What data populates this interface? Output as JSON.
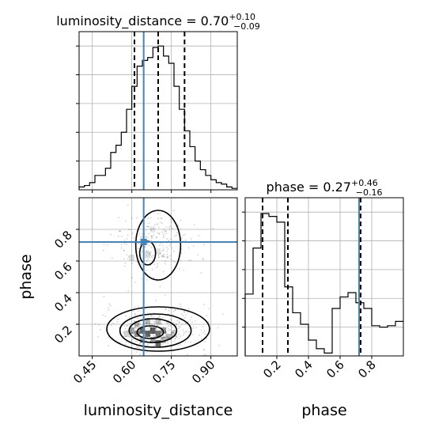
{
  "chart_data": [
    {
      "type": "histogram",
      "panel": "luminosity_distance-marginal",
      "title_main": "luminosity_distance = 0.70",
      "title_sup": "+0.10",
      "title_sub": "−0.09",
      "xlim": [
        0.4,
        1.0
      ],
      "ylim": [
        0,
        1.1
      ],
      "ytick_values": [
        0.2,
        0.4,
        0.6,
        0.8,
        1.0
      ],
      "xtick_values": [
        0.45,
        0.6,
        0.75,
        0.9
      ],
      "bin_edges": [
        0.4,
        0.42,
        0.44,
        0.46,
        0.48,
        0.5,
        0.52,
        0.54,
        0.56,
        0.58,
        0.6,
        0.62,
        0.64,
        0.66,
        0.68,
        0.7,
        0.72,
        0.74,
        0.76,
        0.78,
        0.8,
        0.82,
        0.84,
        0.86,
        0.88,
        0.9,
        0.92,
        0.94,
        0.96,
        0.98,
        1.0
      ],
      "density": [
        0.02,
        0.03,
        0.05,
        0.1,
        0.1,
        0.15,
        0.26,
        0.31,
        0.4,
        0.56,
        0.72,
        0.86,
        0.9,
        0.92,
        0.99,
        1.0,
        0.93,
        0.88,
        0.72,
        0.56,
        0.41,
        0.3,
        0.2,
        0.14,
        0.1,
        0.07,
        0.05,
        0.04,
        0.02,
        0.01
      ],
      "quantile_lines": [
        0.61,
        0.7,
        0.8
      ],
      "truth": 0.645,
      "grid": true
    },
    {
      "type": "scatter",
      "panel": "luminosity_distance-vs-phase",
      "xlabel": "luminosity_distance",
      "ylabel": "phase",
      "xlim": [
        0.4,
        1.0
      ],
      "ylim": [
        0.0,
        1.0
      ],
      "xtick_labels": [
        "0.45",
        "0.60",
        "0.75",
        "0.90"
      ],
      "xtick_values": [
        0.45,
        0.6,
        0.75,
        0.9
      ],
      "ytick_labels": [
        "0.2",
        "0.4",
        "0.6",
        "0.8"
      ],
      "ytick_values": [
        0.2,
        0.4,
        0.6,
        0.8
      ],
      "truth": [
        0.645,
        0.72
      ],
      "contour_levels": [
        {
          "center": [
            0.7,
            0.7
          ],
          "radii": [
            0.085,
            0.22
          ]
        },
        {
          "center": [
            0.66,
            0.65
          ],
          "radii": [
            0.03,
            0.075
          ]
        },
        {
          "center": [
            0.7,
            0.17
          ],
          "radii": [
            0.195,
            0.14
          ]
        },
        {
          "center": [
            0.69,
            0.16
          ],
          "radii": [
            0.135,
            0.105
          ]
        },
        {
          "center": [
            0.68,
            0.16
          ],
          "radii": [
            0.09,
            0.075
          ]
        },
        {
          "center": [
            0.67,
            0.15
          ],
          "radii": [
            0.05,
            0.04
          ]
        }
      ],
      "density_cells": [
        [
          0.6,
          0.16,
          0.45
        ],
        [
          0.62,
          0.14,
          0.65
        ],
        [
          0.64,
          0.16,
          0.8
        ],
        [
          0.66,
          0.14,
          0.85
        ],
        [
          0.68,
          0.16,
          0.9
        ],
        [
          0.7,
          0.14,
          0.75
        ],
        [
          0.72,
          0.16,
          0.55
        ],
        [
          0.74,
          0.12,
          0.4
        ],
        [
          0.62,
          0.2,
          0.35
        ],
        [
          0.66,
          0.22,
          0.4
        ],
        [
          0.7,
          0.22,
          0.35
        ],
        [
          0.58,
          0.14,
          0.25
        ],
        [
          0.76,
          0.14,
          0.25
        ],
        [
          0.64,
          0.1,
          0.45
        ],
        [
          0.68,
          0.1,
          0.55
        ],
        [
          0.72,
          0.1,
          0.4
        ],
        [
          0.7,
          0.08,
          0.85
        ],
        [
          0.6,
          0.62,
          0.18
        ],
        [
          0.66,
          0.64,
          0.2
        ],
        [
          0.7,
          0.66,
          0.15
        ],
        [
          0.64,
          0.74,
          0.14
        ],
        [
          0.68,
          0.8,
          0.12
        ]
      ],
      "grid": true
    },
    {
      "type": "histogram",
      "panel": "phase-marginal",
      "xlabel": "phase",
      "title_main": "phase = 0.27",
      "title_sup": "+0.46",
      "title_sub": "−0.16",
      "xlim": [
        0.0,
        1.0
      ],
      "ylim": [
        0,
        1.1
      ],
      "xtick_labels": [
        "0.2",
        "0.4",
        "0.6",
        "0.8"
      ],
      "xtick_values": [
        0.2,
        0.4,
        0.6,
        0.8
      ],
      "ytick_values": [
        0.2,
        0.4,
        0.6,
        0.8,
        1.0
      ],
      "bin_edges": [
        0.0,
        0.05,
        0.1,
        0.15,
        0.2,
        0.25,
        0.3,
        0.35,
        0.4,
        0.45,
        0.5,
        0.55,
        0.6,
        0.65,
        0.7,
        0.75,
        0.8,
        0.85,
        0.9,
        0.95,
        1.0
      ],
      "density": [
        0.43,
        0.75,
        0.99,
        0.97,
        0.93,
        0.48,
        0.3,
        0.22,
        0.11,
        0.05,
        0.02,
        0.33,
        0.41,
        0.44,
        0.37,
        0.33,
        0.21,
        0.2,
        0.21,
        0.24
      ],
      "quantile_lines": [
        0.11,
        0.27,
        0.73
      ],
      "truth": 0.72,
      "grid": true
    }
  ],
  "style": {
    "truth_color": "#4682b4",
    "line_color": "#000000",
    "grid_color": "#b0b0b0",
    "density_color": "#000000"
  }
}
